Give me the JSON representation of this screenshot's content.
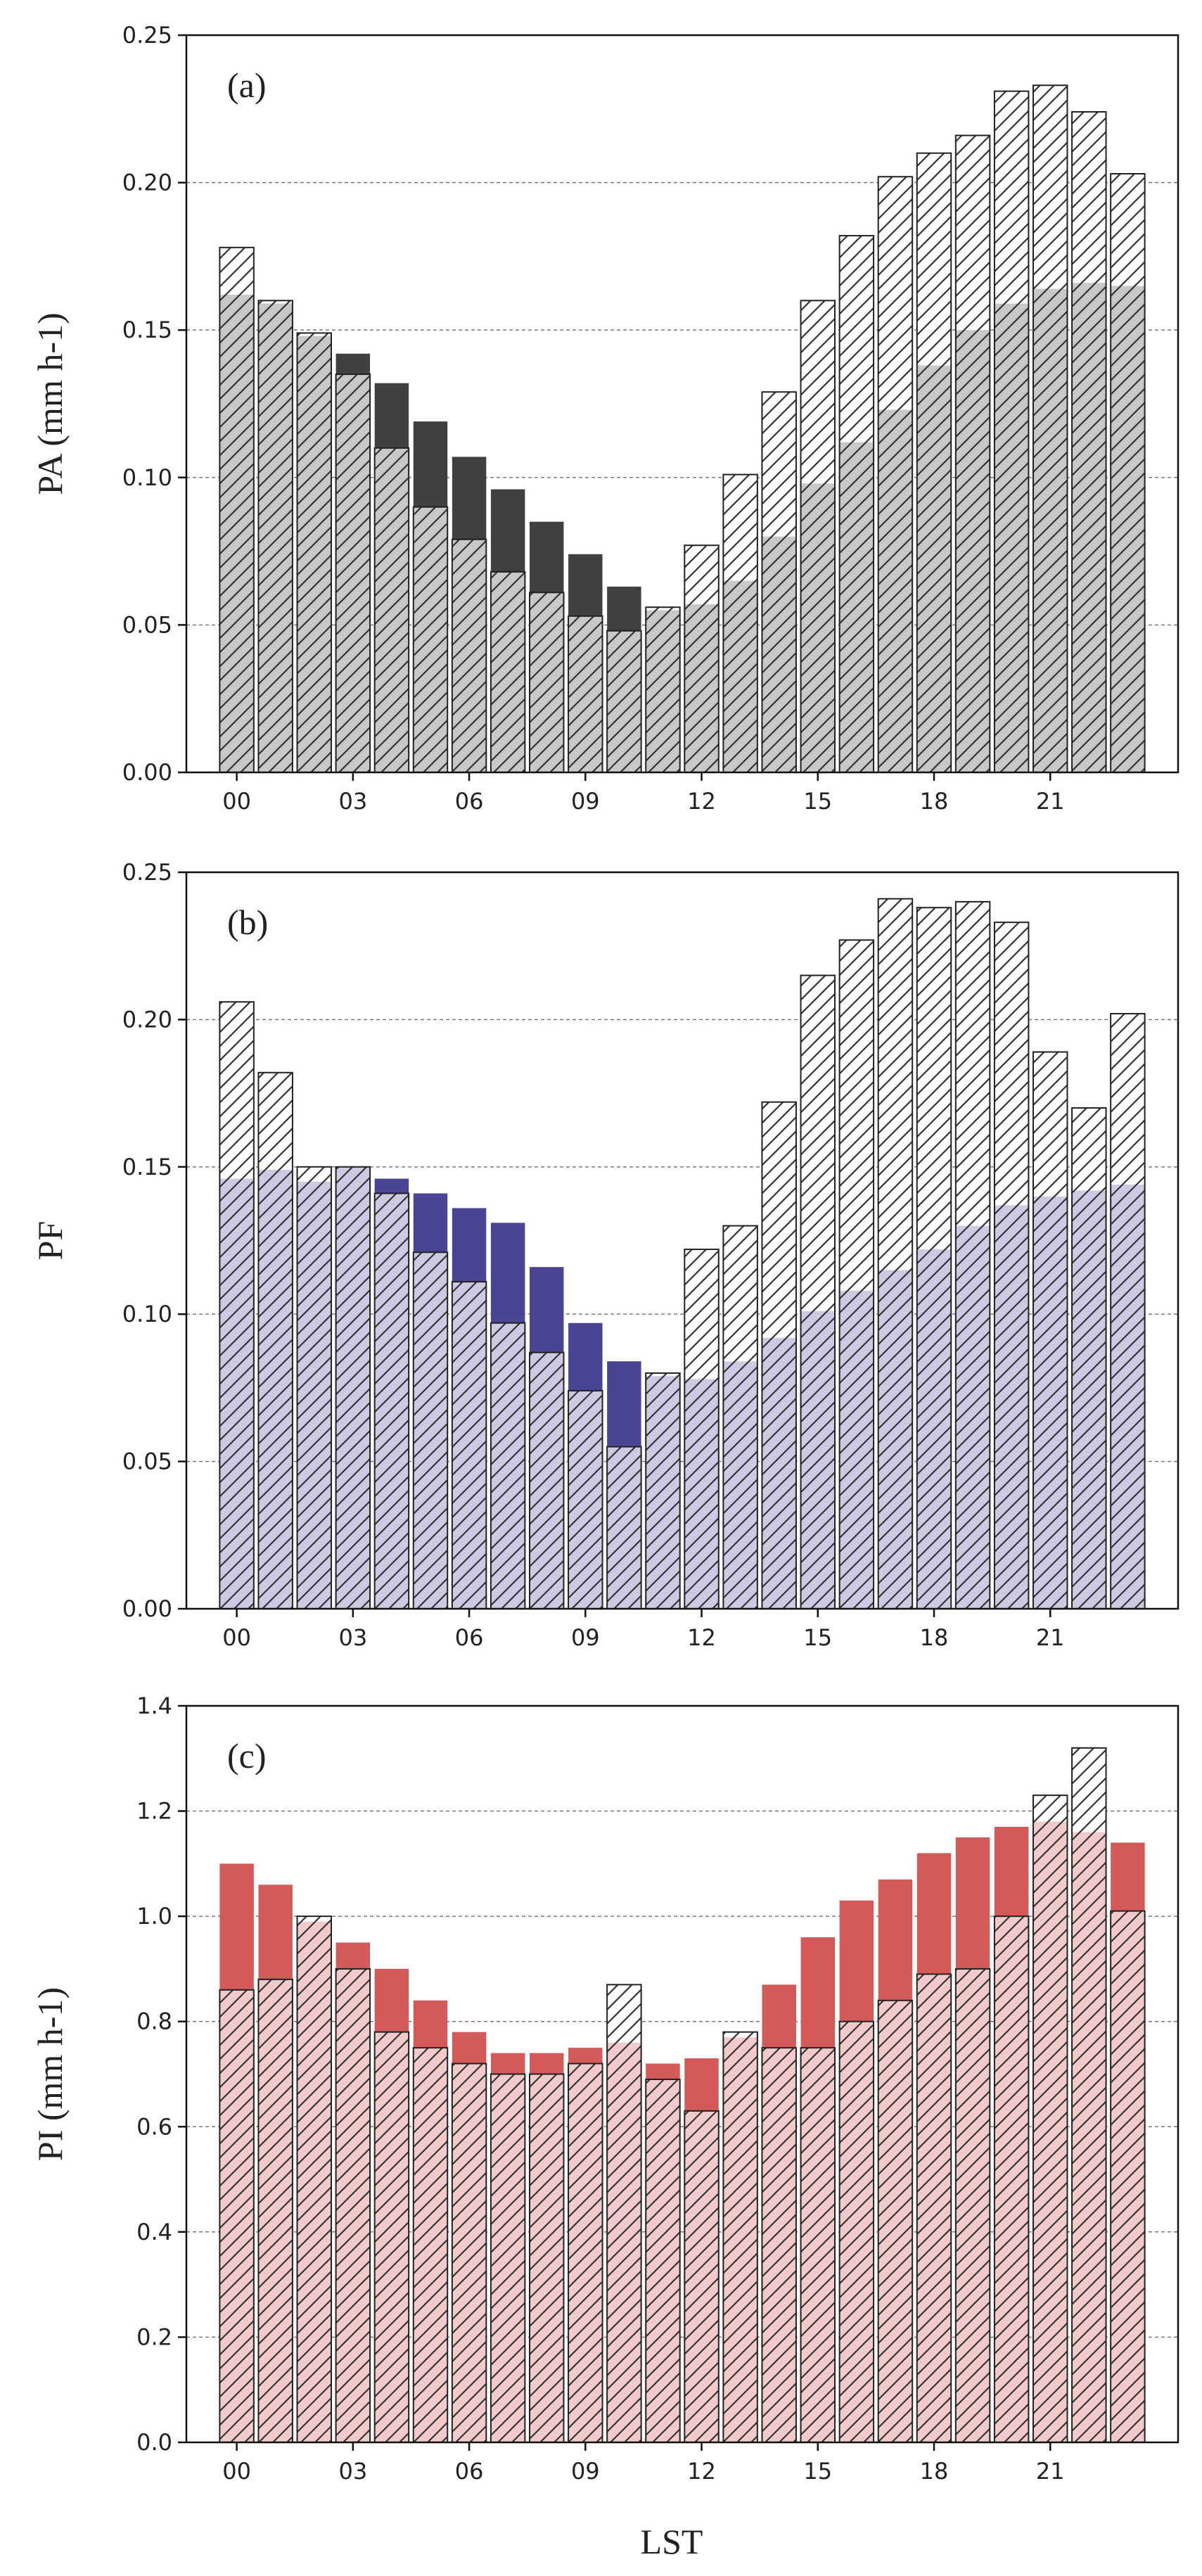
{
  "chart_data": [
    {
      "type": "bar",
      "panel_label": "(a)",
      "ylabel": "PA (mm h-1)",
      "xlabel": "",
      "ylim": [
        0,
        0.25
      ],
      "yticks": [
        "0.00",
        "0.05",
        "0.10",
        "0.15",
        "0.20",
        "0.25"
      ],
      "grid": "horizontal dashed",
      "categories": [
        "00",
        "01",
        "02",
        "03",
        "04",
        "05",
        "06",
        "07",
        "08",
        "09",
        "10",
        "11",
        "12",
        "13",
        "14",
        "15",
        "16",
        "17",
        "18",
        "19",
        "20",
        "21",
        "22",
        "23"
      ],
      "xtick_labels": [
        "00",
        "03",
        "06",
        "09",
        "12",
        "15",
        "18",
        "21"
      ],
      "colors": {
        "solid": "#404040",
        "light": "#c8c8c8"
      },
      "series": [
        {
          "name": "hatched",
          "values": [
            0.178,
            0.16,
            0.149,
            0.135,
            0.11,
            0.09,
            0.079,
            0.068,
            0.061,
            0.053,
            0.048,
            0.056,
            0.077,
            0.101,
            0.129,
            0.16,
            0.182,
            0.202,
            0.21,
            0.216,
            0.231,
            0.233,
            0.224,
            0.203
          ]
        },
        {
          "name": "solid",
          "values": [
            0.162,
            0.159,
            0.148,
            0.142,
            0.132,
            0.119,
            0.107,
            0.096,
            0.085,
            0.074,
            0.063,
            0.055,
            0.057,
            0.065,
            0.08,
            0.098,
            0.112,
            0.123,
            0.138,
            0.15,
            0.159,
            0.164,
            0.166,
            0.165
          ]
        }
      ]
    },
    {
      "type": "bar",
      "panel_label": "(b)",
      "ylabel": "PF",
      "xlabel": "",
      "ylim": [
        0,
        0.25
      ],
      "yticks": [
        "0.00",
        "0.05",
        "0.10",
        "0.15",
        "0.20",
        "0.25"
      ],
      "grid": "horizontal dashed",
      "categories": [
        "00",
        "01",
        "02",
        "03",
        "04",
        "05",
        "06",
        "07",
        "08",
        "09",
        "10",
        "11",
        "12",
        "13",
        "14",
        "15",
        "16",
        "17",
        "18",
        "19",
        "20",
        "21",
        "22",
        "23"
      ],
      "xtick_labels": [
        "00",
        "03",
        "06",
        "09",
        "12",
        "15",
        "18",
        "21"
      ],
      "colors": {
        "solid": "#4a4494",
        "light": "#cccbe3"
      },
      "series": [
        {
          "name": "hatched",
          "values": [
            0.206,
            0.182,
            0.15,
            0.15,
            0.141,
            0.121,
            0.111,
            0.097,
            0.087,
            0.074,
            0.055,
            0.08,
            0.122,
            0.13,
            0.172,
            0.215,
            0.227,
            0.241,
            0.238,
            0.24,
            0.233,
            0.189,
            0.17,
            0.202
          ]
        },
        {
          "name": "solid",
          "values": [
            0.146,
            0.149,
            0.145,
            0.15,
            0.146,
            0.141,
            0.136,
            0.131,
            0.116,
            0.097,
            0.084,
            0.079,
            0.078,
            0.084,
            0.092,
            0.101,
            0.108,
            0.115,
            0.122,
            0.13,
            0.137,
            0.14,
            0.142,
            0.144
          ]
        }
      ]
    },
    {
      "type": "bar",
      "panel_label": "(c)",
      "ylabel": "PI (mm h-1)",
      "xlabel": "LST",
      "ylim": [
        0,
        1.4
      ],
      "yticks": [
        "0.0",
        "0.2",
        "0.4",
        "0.6",
        "0.8",
        "1.0",
        "1.2",
        "1.4"
      ],
      "grid": "horizontal dashed",
      "categories": [
        "00",
        "01",
        "02",
        "03",
        "04",
        "05",
        "06",
        "07",
        "08",
        "09",
        "10",
        "11",
        "12",
        "13",
        "14",
        "15",
        "16",
        "17",
        "18",
        "19",
        "20",
        "21",
        "22",
        "23"
      ],
      "xtick_labels": [
        "00",
        "03",
        "06",
        "09",
        "12",
        "15",
        "18",
        "21"
      ],
      "colors": {
        "solid": "#d45a5a",
        "light": "#f2caca"
      },
      "series": [
        {
          "name": "hatched",
          "values": [
            0.86,
            0.88,
            1.0,
            0.9,
            0.78,
            0.75,
            0.72,
            0.7,
            0.7,
            0.72,
            0.87,
            0.69,
            0.63,
            0.78,
            0.75,
            0.75,
            0.8,
            0.84,
            0.89,
            0.9,
            1.0,
            1.23,
            1.32,
            1.01
          ]
        },
        {
          "name": "solid",
          "values": [
            1.1,
            1.06,
            0.99,
            0.95,
            0.9,
            0.84,
            0.78,
            0.74,
            0.74,
            0.75,
            0.76,
            0.72,
            0.73,
            0.77,
            0.87,
            0.96,
            1.03,
            1.07,
            1.12,
            1.15,
            1.17,
            1.18,
            1.16,
            1.14
          ]
        }
      ]
    }
  ]
}
